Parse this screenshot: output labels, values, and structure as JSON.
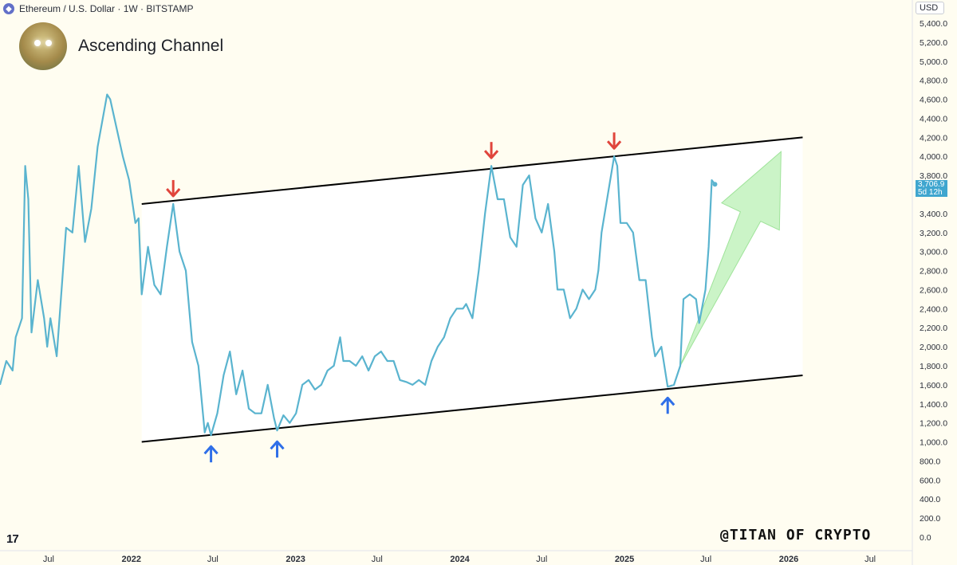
{
  "header": {
    "symbol_line": "Ethereum / U.S. Dollar · 1W · BITSTAMP",
    "currency": "USD"
  },
  "title": "Ascending Channel",
  "watermark": "@TITAN OF CRYPTO",
  "tradingview_logo": "17",
  "price_label": {
    "value": "3,706.9",
    "countdown": "5d 12h"
  },
  "colors": {
    "price_line": "#5ab4cf",
    "channel_lines": "#000000",
    "channel_fill": "#ffffff",
    "top_arrows": "#e0453c",
    "bottom_arrows": "#2f6fe8",
    "projection_arrow": "#b9f0b4",
    "background": "#fffdf1"
  },
  "icons": [
    "ethereum-icon",
    "tradingview-logo",
    "arrow-down-icon",
    "arrow-up-icon"
  ],
  "chart_data": {
    "type": "line",
    "title": "Ascending Channel",
    "subtitle": "Ethereum / U.S. Dollar · 1W · BITSTAMP",
    "xlabel": "",
    "ylabel": "",
    "y_unit": "USD",
    "ylim": [
      0,
      5500
    ],
    "yticks": [
      0,
      200,
      400,
      600,
      800,
      1000,
      1200,
      1400,
      1600,
      1800,
      2000,
      2200,
      2400,
      2600,
      2800,
      3000,
      3200,
      3400,
      3600,
      3800,
      4000,
      4200,
      4400,
      4600,
      4800,
      5000,
      5200,
      5400
    ],
    "ytick_labels": [
      "0.0",
      "200.0",
      "400.0",
      "600.0",
      "800.0",
      "1,000.0",
      "1,200.0",
      "1,400.0",
      "1,600.0",
      "1,800.0",
      "2,000.0",
      "2,200.0",
      "2,400.0",
      "2,600.0",
      "2,800.0",
      "3,000.0",
      "3,200.0",
      "3,400.0",
      "3,600.0",
      "3,800.0",
      "4,000.0",
      "4,200.0",
      "4,400.0",
      "4,600.0",
      "4,800.0",
      "5,000.0",
      "5,200.0",
      "5,400.0"
    ],
    "xlim": [
      "2021-03-15",
      "2026-10-01"
    ],
    "xticks": [
      {
        "date": "2021-07-01",
        "label": "Jul",
        "bold": false
      },
      {
        "date": "2022-01-01",
        "label": "2022",
        "bold": true
      },
      {
        "date": "2022-07-01",
        "label": "Jul",
        "bold": false
      },
      {
        "date": "2023-01-01",
        "label": "2023",
        "bold": true
      },
      {
        "date": "2023-07-01",
        "label": "Jul",
        "bold": false
      },
      {
        "date": "2024-01-01",
        "label": "2024",
        "bold": true
      },
      {
        "date": "2024-07-01",
        "label": "Jul",
        "bold": false
      },
      {
        "date": "2025-01-01",
        "label": "2025",
        "bold": true
      },
      {
        "date": "2025-07-01",
        "label": "Jul",
        "bold": false
      },
      {
        "date": "2026-01-01",
        "label": "2026",
        "bold": true
      },
      {
        "date": "2026-07-01",
        "label": "Jul",
        "bold": false
      }
    ],
    "grid": false,
    "series": [
      {
        "points": [
          [
            "2021-03-15",
            1600
          ],
          [
            "2021-03-29",
            1850
          ],
          [
            "2021-04-12",
            1750
          ],
          [
            "2021-04-19",
            2100
          ],
          [
            "2021-05-03",
            2300
          ],
          [
            "2021-05-10",
            3900
          ],
          [
            "2021-05-17",
            3550
          ],
          [
            "2021-05-24",
            2150
          ],
          [
            "2021-06-07",
            2700
          ],
          [
            "2021-06-21",
            2300
          ],
          [
            "2021-06-28",
            2000
          ],
          [
            "2021-07-05",
            2300
          ],
          [
            "2021-07-19",
            1900
          ],
          [
            "2021-08-09",
            3250
          ],
          [
            "2021-08-23",
            3200
          ],
          [
            "2021-09-06",
            3900
          ],
          [
            "2021-09-20",
            3100
          ],
          [
            "2021-10-04",
            3450
          ],
          [
            "2021-10-18",
            4100
          ],
          [
            "2021-11-08",
            4650
          ],
          [
            "2021-11-15",
            4600
          ],
          [
            "2021-11-29",
            4300
          ],
          [
            "2021-12-13",
            4000
          ],
          [
            "2021-12-27",
            3750
          ],
          [
            "2022-01-10",
            3300
          ],
          [
            "2022-01-17",
            3350
          ],
          [
            "2022-01-24",
            2550
          ],
          [
            "2022-02-07",
            3050
          ],
          [
            "2022-02-21",
            2650
          ],
          [
            "2022-03-07",
            2550
          ],
          [
            "2022-03-21",
            3050
          ],
          [
            "2022-04-04",
            3500
          ],
          [
            "2022-04-18",
            3000
          ],
          [
            "2022-05-02",
            2800
          ],
          [
            "2022-05-16",
            2050
          ],
          [
            "2022-05-30",
            1800
          ],
          [
            "2022-06-13",
            1100
          ],
          [
            "2022-06-20",
            1200
          ],
          [
            "2022-06-27",
            1070
          ],
          [
            "2022-07-11",
            1300
          ],
          [
            "2022-07-25",
            1700
          ],
          [
            "2022-08-08",
            1950
          ],
          [
            "2022-08-22",
            1500
          ],
          [
            "2022-09-05",
            1750
          ],
          [
            "2022-09-19",
            1350
          ],
          [
            "2022-10-03",
            1300
          ],
          [
            "2022-10-17",
            1300
          ],
          [
            "2022-10-31",
            1600
          ],
          [
            "2022-11-14",
            1250
          ],
          [
            "2022-11-21",
            1120
          ],
          [
            "2022-12-05",
            1280
          ],
          [
            "2022-12-19",
            1200
          ],
          [
            "2023-01-02",
            1300
          ],
          [
            "2023-01-16",
            1600
          ],
          [
            "2023-01-30",
            1650
          ],
          [
            "2023-02-13",
            1550
          ],
          [
            "2023-02-27",
            1600
          ],
          [
            "2023-03-13",
            1750
          ],
          [
            "2023-03-27",
            1800
          ],
          [
            "2023-04-10",
            2100
          ],
          [
            "2023-04-17",
            1850
          ],
          [
            "2023-05-01",
            1850
          ],
          [
            "2023-05-15",
            1800
          ],
          [
            "2023-05-29",
            1900
          ],
          [
            "2023-06-12",
            1750
          ],
          [
            "2023-06-26",
            1900
          ],
          [
            "2023-07-10",
            1950
          ],
          [
            "2023-07-24",
            1850
          ],
          [
            "2023-08-07",
            1850
          ],
          [
            "2023-08-21",
            1650
          ],
          [
            "2023-09-04",
            1630
          ],
          [
            "2023-09-18",
            1600
          ],
          [
            "2023-10-02",
            1650
          ],
          [
            "2023-10-16",
            1600
          ],
          [
            "2023-10-30",
            1850
          ],
          [
            "2023-11-13",
            2000
          ],
          [
            "2023-11-27",
            2100
          ],
          [
            "2023-12-11",
            2300
          ],
          [
            "2023-12-25",
            2400
          ],
          [
            "2024-01-08",
            2400
          ],
          [
            "2024-01-15",
            2450
          ],
          [
            "2024-01-29",
            2300
          ],
          [
            "2024-02-12",
            2800
          ],
          [
            "2024-02-26",
            3400
          ],
          [
            "2024-03-11",
            3900
          ],
          [
            "2024-03-25",
            3550
          ],
          [
            "2024-04-08",
            3550
          ],
          [
            "2024-04-22",
            3150
          ],
          [
            "2024-05-06",
            3050
          ],
          [
            "2024-05-20",
            3700
          ],
          [
            "2024-06-03",
            3800
          ],
          [
            "2024-06-17",
            3350
          ],
          [
            "2024-07-01",
            3200
          ],
          [
            "2024-07-15",
            3500
          ],
          [
            "2024-07-29",
            3000
          ],
          [
            "2024-08-05",
            2600
          ],
          [
            "2024-08-19",
            2600
          ],
          [
            "2024-09-02",
            2300
          ],
          [
            "2024-09-16",
            2400
          ],
          [
            "2024-09-30",
            2600
          ],
          [
            "2024-10-14",
            2500
          ],
          [
            "2024-10-28",
            2600
          ],
          [
            "2024-11-04",
            2800
          ],
          [
            "2024-11-11",
            3200
          ],
          [
            "2024-11-25",
            3600
          ],
          [
            "2024-12-09",
            4000
          ],
          [
            "2024-12-16",
            3900
          ],
          [
            "2024-12-23",
            3300
          ],
          [
            "2025-01-06",
            3300
          ],
          [
            "2025-01-20",
            3200
          ],
          [
            "2025-02-03",
            2700
          ],
          [
            "2025-02-17",
            2700
          ],
          [
            "2025-03-03",
            2100
          ],
          [
            "2025-03-10",
            1900
          ],
          [
            "2025-03-24",
            2000
          ],
          [
            "2025-04-07",
            1580
          ],
          [
            "2025-04-21",
            1600
          ],
          [
            "2025-05-05",
            1800
          ],
          [
            "2025-05-12",
            2500
          ],
          [
            "2025-05-26",
            2550
          ],
          [
            "2025-06-09",
            2500
          ],
          [
            "2025-06-16",
            2250
          ],
          [
            "2025-06-30",
            2600
          ],
          [
            "2025-07-07",
            3050
          ],
          [
            "2025-07-14",
            3750
          ],
          [
            "2025-07-21",
            3706.9
          ]
        ]
      }
    ],
    "channel": {
      "upper": [
        [
          "2022-01-24",
          3500
        ],
        [
          "2026-02-01",
          4200
        ]
      ],
      "lower": [
        [
          "2022-01-24",
          1000
        ],
        [
          "2026-02-01",
          1700
        ]
      ],
      "fill_end": "2026-02-01"
    },
    "annotations": {
      "down_arrows": [
        {
          "date": "2022-04-04",
          "value": 3500
        },
        {
          "date": "2024-03-11",
          "value": 3900
        },
        {
          "date": "2024-12-09",
          "value": 4000
        }
      ],
      "up_arrows": [
        {
          "date": "2022-06-27",
          "value": 1070
        },
        {
          "date": "2022-11-21",
          "value": 1120
        },
        {
          "date": "2025-04-07",
          "value": 1580
        }
      ],
      "projection_arrow": {
        "from": [
          "2025-05-05",
          1800
        ],
        "to": [
          "2025-12-15",
          4050
        ]
      }
    },
    "last_price": 3706.9
  }
}
